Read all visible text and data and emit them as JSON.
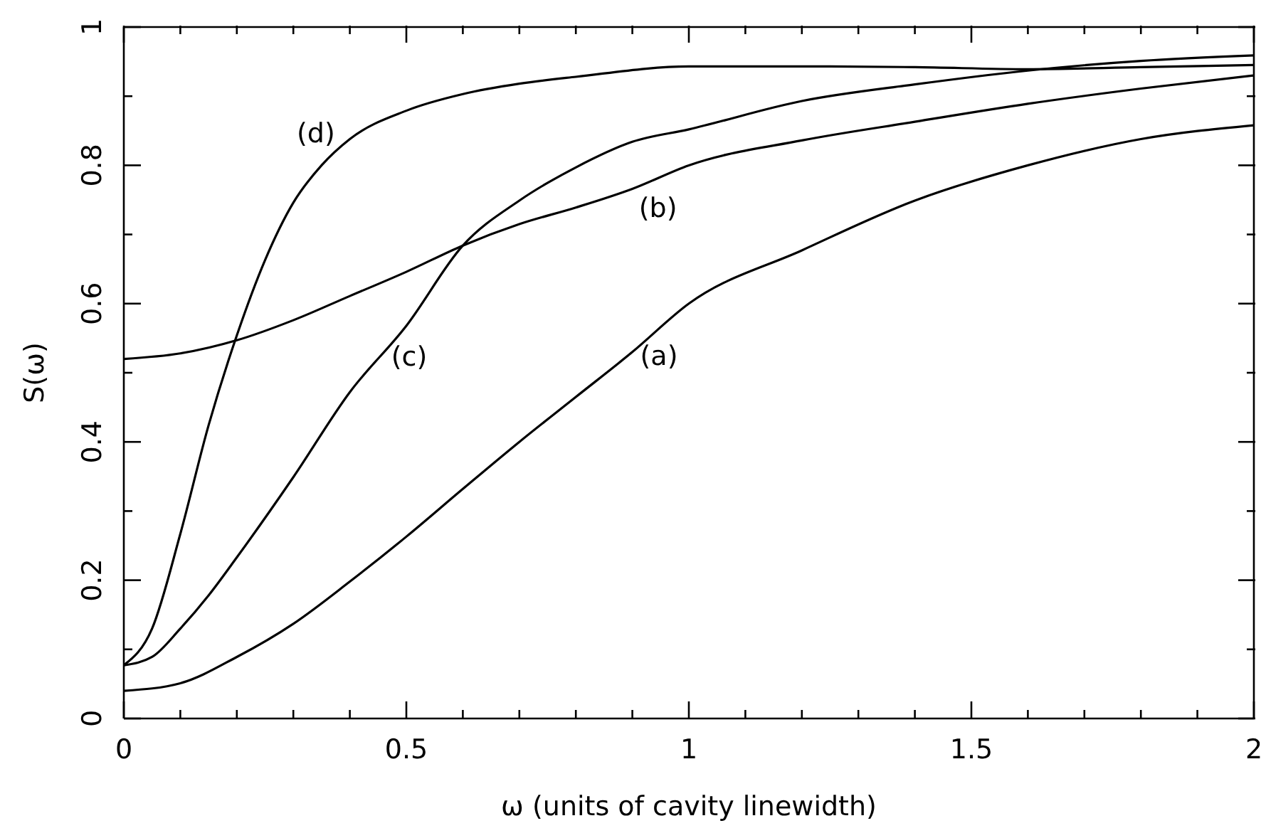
{
  "chart_data": {
    "type": "line",
    "xlabel": "ω (units of cavity linewidth)",
    "ylabel": "S(ω)",
    "xlim": [
      0,
      2
    ],
    "ylim": [
      0,
      1
    ],
    "xticks": [
      0,
      {
        "value": 0.1,
        "label": null
      },
      {
        "value": 0.2,
        "label": null
      },
      {
        "value": 0.3,
        "label": null
      },
      {
        "value": 0.4,
        "label": null
      },
      0.5,
      {
        "value": 0.6,
        "label": null
      },
      {
        "value": 0.7,
        "label": null
      },
      {
        "value": 0.8,
        "label": null
      },
      {
        "value": 0.9,
        "label": null
      },
      1,
      {
        "value": 1.1,
        "label": null
      },
      {
        "value": 1.2,
        "label": null
      },
      {
        "value": 1.3,
        "label": null
      },
      {
        "value": 1.4,
        "label": null
      },
      1.5,
      {
        "value": 1.6,
        "label": null
      },
      {
        "value": 1.7,
        "label": null
      },
      {
        "value": 1.8,
        "label": null
      },
      {
        "value": 1.9,
        "label": null
      },
      2
    ],
    "yticks": [
      0,
      {
        "value": 0.1,
        "label": null
      },
      0.2,
      {
        "value": 0.3,
        "label": null
      },
      0.4,
      {
        "value": 0.5,
        "label": null
      },
      0.6,
      {
        "value": 0.7,
        "label": null
      },
      0.8,
      {
        "value": 0.9,
        "label": null
      },
      1
    ],
    "legend": false,
    "marker": "none",
    "line_style": "solid",
    "series": [
      {
        "name": "(a)",
        "color": "#000000",
        "x": [
          0,
          0.1,
          0.2,
          0.3,
          0.4,
          0.5,
          0.6,
          0.7,
          0.8,
          0.9,
          1,
          1.2,
          1.4,
          1.6,
          1.8,
          2
        ],
        "values": [
          0.04,
          0.051,
          0.089,
          0.137,
          0.198,
          0.263,
          0.332,
          0.4,
          0.465,
          0.53,
          0.6,
          0.677,
          0.749,
          0.8,
          0.838,
          0.858
        ]
      },
      {
        "name": "(b)",
        "color": "#000000",
        "x": [
          0,
          0.1,
          0.2,
          0.3,
          0.4,
          0.5,
          0.6,
          0.7,
          0.8,
          0.9,
          1,
          1.2,
          1.4,
          1.6,
          1.8,
          2
        ],
        "values": [
          0.52,
          0.528,
          0.547,
          0.576,
          0.611,
          0.646,
          0.684,
          0.715,
          0.739,
          0.766,
          0.8,
          0.836,
          0.863,
          0.889,
          0.911,
          0.93
        ]
      },
      {
        "name": "(c)",
        "color": "#000000",
        "x": [
          0,
          0.05,
          0.1,
          0.15,
          0.2,
          0.3,
          0.4,
          0.5,
          0.6,
          0.7,
          0.8,
          0.9,
          1,
          1.2,
          1.4,
          1.6,
          1.8,
          2
        ],
        "values": [
          0.077,
          0.089,
          0.13,
          0.178,
          0.233,
          0.349,
          0.472,
          0.568,
          0.684,
          0.749,
          0.797,
          0.834,
          0.852,
          0.893,
          0.917,
          0.937,
          0.951,
          0.959
        ]
      },
      {
        "name": "(d)",
        "color": "#000000",
        "x": [
          0,
          0.05,
          0.1,
          0.15,
          0.2,
          0.25,
          0.3,
          0.35,
          0.4,
          0.5,
          0.6,
          0.7,
          0.8,
          1,
          1.2,
          1.4,
          1.6,
          1.8,
          2
        ],
        "values": [
          0.077,
          0.13,
          0.267,
          0.424,
          0.554,
          0.663,
          0.746,
          0.8,
          0.838,
          0.879,
          0.903,
          0.918,
          0.928,
          0.943,
          0.943,
          0.942,
          0.939,
          0.942,
          0.945
        ]
      }
    ]
  }
}
